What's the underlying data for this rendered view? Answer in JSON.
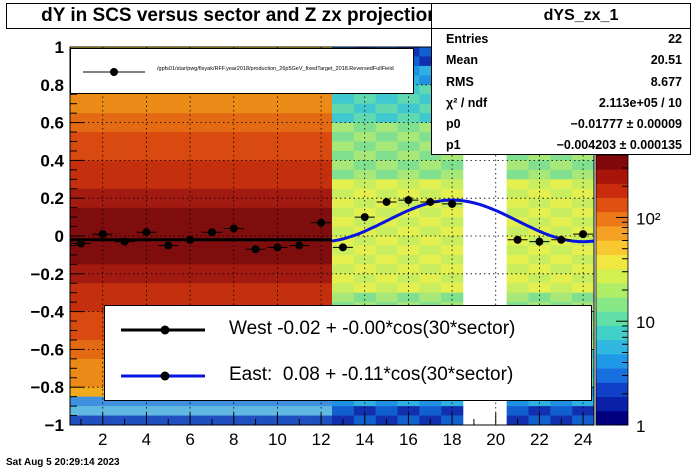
{
  "title": "dY in SCS versus sector and Z zx projection",
  "stats": {
    "name": "dYS_zx_1",
    "rows": [
      {
        "key": "Entries",
        "value": "22"
      },
      {
        "key": "Mean",
        "value": "20.51"
      },
      {
        "key": "RMS",
        "value": "8.677"
      },
      {
        "key": "χ² / ndf",
        "value": "2.113e+05 / 10"
      },
      {
        "key": "p0",
        "value": "−0.01777 ± 0.00009"
      },
      {
        "key": "p1",
        "value": "−0.004203 ± 0.000135"
      }
    ]
  },
  "legend_top": {
    "label": "/gpfs01/star/pwg/fisyak/RFF.year2018/production_26p5GeV_fixedTarget_2018.ReversedFullField"
  },
  "legend_bottom": {
    "west": "West -0.02 + -0.00*cos(30*sector)",
    "east": "East:  0.08 + -0.11*cos(30*sector)"
  },
  "timestamp": "Sat Aug  5 20:29:14 2023",
  "colors": {
    "west_line": "#000000",
    "east_line": "#0a14e0",
    "points": "#000000"
  },
  "chart_data": {
    "type": "scatter",
    "title": "dY in SCS versus sector and Z zx projection",
    "xlabel": "",
    "ylabel": "",
    "xlim": [
      0.5,
      24.5
    ],
    "ylim": [
      -1,
      1
    ],
    "x_ticks": [
      2,
      4,
      6,
      8,
      10,
      12,
      14,
      16,
      18,
      20,
      22,
      24
    ],
    "y_ticks": [
      -1,
      -0.8,
      -0.6,
      -0.4,
      -0.2,
      0,
      0.2,
      0.4,
      0.6,
      0.8,
      1
    ],
    "y_tick_labels": [
      "−1",
      "−0.8",
      "−0.6",
      "−0.4",
      "−0.2",
      "0",
      "0.2",
      "0.4",
      "0.6",
      "0.8",
      "1"
    ],
    "grid": true,
    "colorbar": {
      "scale": "log",
      "range": [
        1,
        400
      ],
      "tick_labels": [
        "1",
        "10",
        "10²"
      ]
    },
    "series": [
      {
        "name": "West -0.02 + -0.00*cos(30*sector)",
        "x": [
          1,
          2,
          3,
          4,
          5,
          6,
          7,
          8,
          9,
          10,
          11,
          12
        ],
        "y": [
          -0.04,
          0.01,
          -0.03,
          0.02,
          -0.05,
          -0.02,
          0.02,
          0.04,
          -0.07,
          -0.06,
          -0.05,
          0.07
        ],
        "fit": {
          "p0": -0.02,
          "p1": -0.0,
          "x_range": [
            0.5,
            12.5
          ]
        }
      },
      {
        "name": "East:  0.08 + -0.11*cos(30*sector)",
        "x": [
          13,
          14,
          15,
          16,
          17,
          18,
          21,
          22,
          23,
          24
        ],
        "y": [
          -0.06,
          0.1,
          0.18,
          0.19,
          0.18,
          0.17,
          -0.02,
          -0.03,
          -0.02,
          0.01
        ],
        "fit": {
          "p0": 0.08,
          "p1": -0.11,
          "x_range": [
            12.5,
            24.5
          ]
        }
      }
    ],
    "histogram": {
      "x_bins": 24,
      "empty_columns": [
        19,
        20
      ],
      "note": "2D color map of dY vs sector"
    }
  }
}
